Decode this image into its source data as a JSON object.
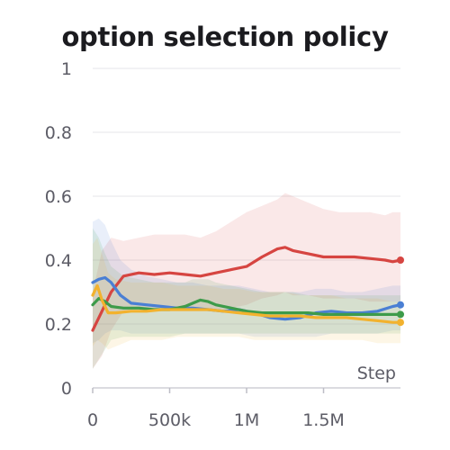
{
  "chart_data": {
    "type": "line",
    "title": "option selection policy",
    "xlabel": "Step",
    "ylabel": "",
    "xlim": [
      0,
      2000000
    ],
    "ylim": [
      0,
      1
    ],
    "xticks": [
      0,
      500000,
      1000000,
      1500000
    ],
    "xtick_labels": [
      "0",
      "500k",
      "1M",
      "1.5M"
    ],
    "yticks": [
      0,
      0.2,
      0.4,
      0.6,
      0.8,
      1
    ],
    "ytick_labels": [
      "0",
      "0.2",
      "0.4",
      "0.6",
      "0.8",
      "1"
    ],
    "grid": true,
    "legend": "none",
    "series": [
      {
        "color": "#d64541",
        "x": [
          0,
          60000,
          120000,
          200000,
          300000,
          400000,
          500000,
          600000,
          700000,
          800000,
          900000,
          1000000,
          1100000,
          1200000,
          1250000,
          1300000,
          1400000,
          1500000,
          1600000,
          1700000,
          1800000,
          1900000,
          1950000,
          2000000
        ],
        "values": [
          0.18,
          0.24,
          0.3,
          0.35,
          0.36,
          0.355,
          0.36,
          0.355,
          0.35,
          0.36,
          0.37,
          0.38,
          0.41,
          0.435,
          0.44,
          0.43,
          0.42,
          0.41,
          0.41,
          0.41,
          0.405,
          0.4,
          0.395,
          0.4
        ],
        "band_upper": [
          0.3,
          0.43,
          0.47,
          0.46,
          0.47,
          0.48,
          0.48,
          0.48,
          0.47,
          0.49,
          0.52,
          0.55,
          0.57,
          0.59,
          0.61,
          0.6,
          0.58,
          0.56,
          0.55,
          0.55,
          0.55,
          0.54,
          0.55,
          0.55
        ],
        "band_lower": [
          0.06,
          0.1,
          0.18,
          0.24,
          0.25,
          0.24,
          0.24,
          0.24,
          0.24,
          0.24,
          0.25,
          0.26,
          0.28,
          0.29,
          0.3,
          0.29,
          0.29,
          0.28,
          0.28,
          0.28,
          0.27,
          0.27,
          0.27,
          0.27
        ]
      },
      {
        "color": "#4a7fd4",
        "x": [
          0,
          40000,
          80000,
          120000,
          180000,
          250000,
          350000,
          450000,
          550000,
          650000,
          750000,
          850000,
          950000,
          1050000,
          1150000,
          1250000,
          1350000,
          1450000,
          1550000,
          1650000,
          1750000,
          1850000,
          1950000,
          2000000
        ],
        "values": [
          0.33,
          0.34,
          0.345,
          0.33,
          0.29,
          0.265,
          0.26,
          0.255,
          0.25,
          0.25,
          0.245,
          0.24,
          0.245,
          0.235,
          0.22,
          0.215,
          0.22,
          0.235,
          0.24,
          0.235,
          0.235,
          0.24,
          0.255,
          0.26
        ],
        "band_upper": [
          0.52,
          0.53,
          0.51,
          0.46,
          0.4,
          0.37,
          0.35,
          0.34,
          0.33,
          0.33,
          0.32,
          0.32,
          0.32,
          0.31,
          0.3,
          0.3,
          0.3,
          0.31,
          0.31,
          0.3,
          0.3,
          0.31,
          0.32,
          0.32
        ],
        "band_lower": [
          0.14,
          0.15,
          0.17,
          0.18,
          0.18,
          0.17,
          0.17,
          0.17,
          0.17,
          0.17,
          0.17,
          0.17,
          0.17,
          0.16,
          0.16,
          0.16,
          0.16,
          0.16,
          0.17,
          0.17,
          0.17,
          0.17,
          0.18,
          0.18
        ]
      },
      {
        "color": "#3d9b4a",
        "x": [
          0,
          40000,
          80000,
          120000,
          200000,
          300000,
          400000,
          500000,
          600000,
          650000,
          700000,
          750000,
          800000,
          900000,
          1000000,
          1100000,
          1200000,
          1300000,
          1400000,
          1500000,
          1600000,
          1700000,
          1800000,
          1900000,
          2000000
        ],
        "values": [
          0.26,
          0.28,
          0.27,
          0.255,
          0.25,
          0.25,
          0.245,
          0.245,
          0.255,
          0.265,
          0.275,
          0.27,
          0.26,
          0.25,
          0.24,
          0.235,
          0.235,
          0.235,
          0.235,
          0.23,
          0.23,
          0.23,
          0.23,
          0.23,
          0.23
        ],
        "band_upper": [
          0.5,
          0.47,
          0.42,
          0.38,
          0.35,
          0.34,
          0.33,
          0.33,
          0.33,
          0.34,
          0.34,
          0.34,
          0.33,
          0.32,
          0.31,
          0.3,
          0.3,
          0.3,
          0.29,
          0.29,
          0.29,
          0.29,
          0.29,
          0.29,
          0.29
        ],
        "band_lower": [
          0.06,
          0.09,
          0.12,
          0.15,
          0.16,
          0.16,
          0.16,
          0.16,
          0.17,
          0.17,
          0.17,
          0.17,
          0.17,
          0.17,
          0.17,
          0.17,
          0.17,
          0.17,
          0.17,
          0.17,
          0.17,
          0.17,
          0.17,
          0.17,
          0.17
        ]
      },
      {
        "color": "#f2b22e",
        "x": [
          0,
          30000,
          60000,
          100000,
          150000,
          250000,
          350000,
          450000,
          550000,
          650000,
          750000,
          850000,
          950000,
          1050000,
          1150000,
          1250000,
          1350000,
          1450000,
          1550000,
          1650000,
          1750000,
          1850000,
          1950000,
          2000000
        ],
        "values": [
          0.29,
          0.32,
          0.275,
          0.235,
          0.235,
          0.24,
          0.24,
          0.245,
          0.245,
          0.245,
          0.245,
          0.24,
          0.235,
          0.23,
          0.225,
          0.225,
          0.225,
          0.22,
          0.22,
          0.22,
          0.215,
          0.21,
          0.205,
          0.205
        ],
        "band_upper": [
          0.45,
          0.47,
          0.42,
          0.36,
          0.34,
          0.33,
          0.33,
          0.33,
          0.32,
          0.32,
          0.32,
          0.31,
          0.31,
          0.3,
          0.3,
          0.3,
          0.29,
          0.29,
          0.29,
          0.28,
          0.28,
          0.28,
          0.27,
          0.27
        ],
        "band_lower": [
          0.13,
          0.15,
          0.14,
          0.12,
          0.13,
          0.15,
          0.15,
          0.15,
          0.16,
          0.16,
          0.16,
          0.16,
          0.16,
          0.15,
          0.15,
          0.15,
          0.15,
          0.15,
          0.15,
          0.15,
          0.15,
          0.14,
          0.14,
          0.14
        ]
      }
    ]
  }
}
